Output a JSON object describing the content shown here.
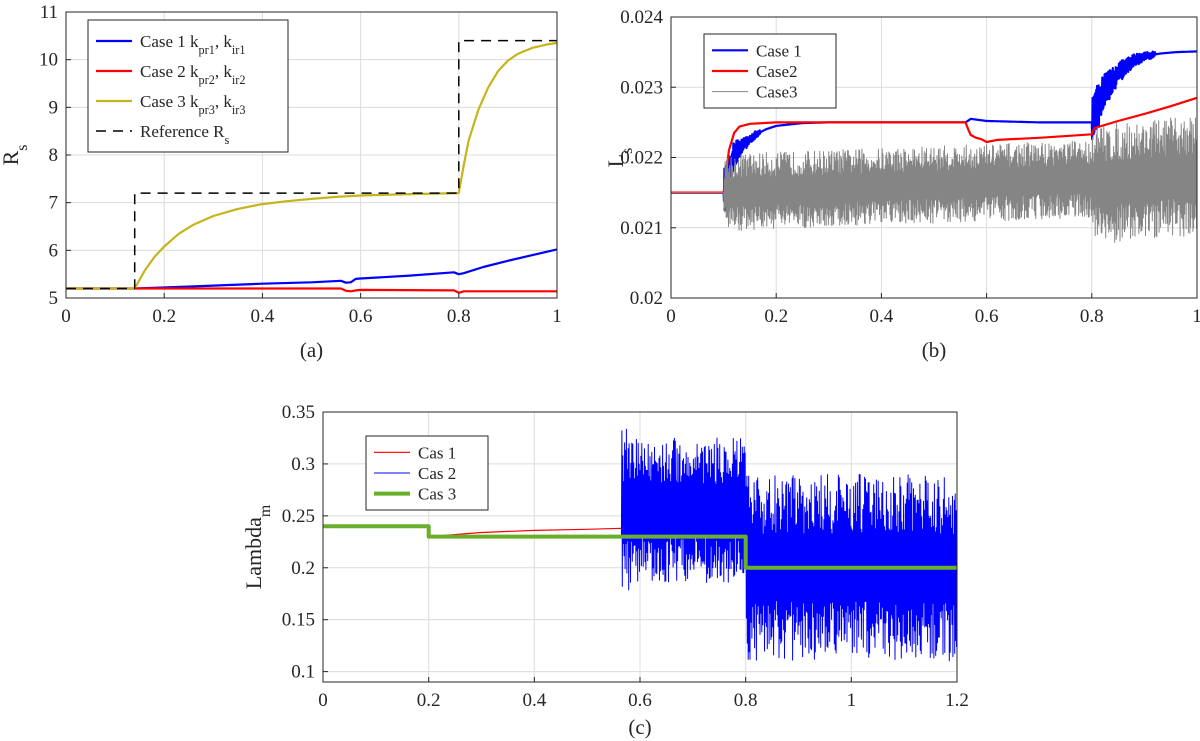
{
  "chart_data": [
    {
      "panel": "(a)",
      "caption": "(a)",
      "type": "line",
      "xlabel": "",
      "ylabel": {
        "main": "R",
        "sub": "s"
      },
      "xlim": [
        0,
        1
      ],
      "ylim": [
        5,
        11
      ],
      "xticks": [
        0,
        0.2,
        0.4,
        0.6,
        0.8,
        1
      ],
      "xtick_labels": [
        "0",
        "0.2",
        "0.4",
        "0.6",
        "0.8",
        "1"
      ],
      "yticks": [
        5,
        6,
        7,
        8,
        9,
        10,
        11
      ],
      "ytick_labels": [
        "5",
        "6",
        "7",
        "8",
        "9",
        "10",
        "11"
      ],
      "grid": true,
      "legend_position": "top-left",
      "series": [
        {
          "legend": {
            "main": "Case 1 k",
            "sub1": "pr1",
            "mid": ", k",
            "sub2": "ir1"
          },
          "color": "#0000ff",
          "width": 2.2,
          "x": [
            0,
            0.14,
            0.2,
            0.3,
            0.4,
            0.5,
            0.56,
            0.57,
            0.58,
            0.59,
            0.6,
            0.7,
            0.79,
            0.8,
            0.81,
            0.85,
            0.9,
            0.95,
            1.0
          ],
          "y": [
            5.2,
            5.2,
            5.22,
            5.26,
            5.3,
            5.33,
            5.36,
            5.32,
            5.33,
            5.4,
            5.41,
            5.47,
            5.54,
            5.5,
            5.52,
            5.65,
            5.78,
            5.9,
            6.02
          ]
        },
        {
          "legend": {
            "main": "Case 2 k",
            "sub1": "pr2",
            "mid": ", k",
            "sub2": "ir2"
          },
          "color": "#ff0000",
          "width": 2.2,
          "x": [
            0,
            0.14,
            0.3,
            0.56,
            0.57,
            0.58,
            0.59,
            0.6,
            0.79,
            0.8,
            0.81,
            1.0
          ],
          "y": [
            5.2,
            5.2,
            5.2,
            5.2,
            5.15,
            5.14,
            5.16,
            5.17,
            5.16,
            5.11,
            5.14,
            5.14
          ]
        },
        {
          "legend": {
            "main": "Case 3 k",
            "sub1": "pr3",
            "mid": ", k",
            "sub2": "ir3"
          },
          "color": "#c6b41c",
          "width": 2.2,
          "x": [
            0,
            0.14,
            0.16,
            0.18,
            0.2,
            0.23,
            0.26,
            0.3,
            0.35,
            0.4,
            0.45,
            0.5,
            0.55,
            0.6,
            0.7,
            0.8,
            0.81,
            0.82,
            0.84,
            0.86,
            0.88,
            0.9,
            0.92,
            0.95,
            0.98,
            1.0
          ],
          "y": [
            5.2,
            5.2,
            5.57,
            5.86,
            6.08,
            6.35,
            6.54,
            6.72,
            6.87,
            6.97,
            7.03,
            7.08,
            7.12,
            7.15,
            7.18,
            7.2,
            7.78,
            8.3,
            8.95,
            9.42,
            9.76,
            9.98,
            10.12,
            10.25,
            10.32,
            10.35
          ]
        },
        {
          "legend": {
            "main": "Reference R",
            "sub1": "s",
            "mid": "",
            "sub2": ""
          },
          "color": "#000000",
          "width": 1.5,
          "dash": "10,7",
          "x": [
            0,
            0.14,
            0.14,
            0.8,
            0.8,
            1.0
          ],
          "y": [
            5.2,
            5.2,
            7.2,
            7.2,
            10.4,
            10.4
          ]
        }
      ]
    },
    {
      "panel": "(b)",
      "caption": "(b)",
      "type": "line",
      "xlabel": "",
      "ylabel": {
        "main": "L",
        "sub": "s"
      },
      "xlim": [
        0,
        1
      ],
      "ylim": [
        0.02,
        0.024
      ],
      "xticks": [
        0,
        0.2,
        0.4,
        0.6,
        0.8,
        1
      ],
      "xtick_labels": [
        "0",
        "0.2",
        "0.4",
        "0.6",
        "0.8",
        "1"
      ],
      "yticks": [
        0.02,
        0.021,
        0.022,
        0.023,
        0.024
      ],
      "ytick_labels": [
        "0.02",
        "0.021",
        "0.022",
        "0.023",
        "0.024"
      ],
      "grid": true,
      "legend_position": "top-left",
      "series": [
        {
          "name": "Case 1",
          "color": "#0000ff",
          "width": 2.2,
          "x": [
            0,
            0.1,
            0.11,
            0.12,
            0.14,
            0.16,
            0.18,
            0.2,
            0.25,
            0.3,
            0.56,
            0.57,
            0.6,
            0.7,
            0.8,
            0.82,
            0.85,
            0.88,
            0.9,
            0.93,
            0.96,
            1.0
          ],
          "y": [
            0.0215,
            0.0215,
            0.0218,
            0.02205,
            0.0222,
            0.02232,
            0.0224,
            0.02245,
            0.02249,
            0.0225,
            0.0225,
            0.02255,
            0.02252,
            0.0225,
            0.0225,
            0.0229,
            0.0232,
            0.02338,
            0.02344,
            0.02348,
            0.0235,
            0.02351
          ],
          "noise": [
            {
              "from": 0.1,
              "to": 0.17,
              "amp": 0.00035,
              "decay": true
            },
            {
              "from": 0.8,
              "to": 0.92,
              "amp": 0.0004,
              "decay": true
            }
          ]
        },
        {
          "name": "Case2",
          "color": "#ff0000",
          "width": 2.2,
          "x": [
            0,
            0.1,
            0.11,
            0.12,
            0.13,
            0.15,
            0.2,
            0.56,
            0.565,
            0.57,
            0.58,
            0.59,
            0.6,
            0.62,
            0.7,
            0.8,
            0.805,
            0.85,
            0.9,
            0.95,
            1.0
          ],
          "y": [
            0.0215,
            0.0215,
            0.0221,
            0.02235,
            0.02244,
            0.02248,
            0.0225,
            0.0225,
            0.0224,
            0.02232,
            0.02228,
            0.02226,
            0.02222,
            0.02225,
            0.02228,
            0.02233,
            0.02242,
            0.02252,
            0.02262,
            0.02273,
            0.02285
          ]
        },
        {
          "name": "Case3",
          "color": "#858585",
          "width": 1,
          "x": [
            0,
            0.1,
            0.8,
            0.8,
            1.0
          ],
          "y": [
            0.0215,
            0.0215,
            0.0217,
            0.0216,
            0.02175
          ],
          "noise": [
            {
              "from": 0.1,
              "to": 0.8,
              "amp": 0.00055,
              "decay": false
            },
            {
              "from": 0.8,
              "to": 1.0,
              "amp": 0.00085,
              "decay": false
            }
          ]
        }
      ]
    },
    {
      "panel": "(c)",
      "caption": "(c)",
      "type": "line",
      "xlabel": "",
      "ylabel": {
        "main": "Lambda",
        "sub": "m"
      },
      "xlim": [
        0,
        1.2
      ],
      "ylim": [
        0.09,
        0.35
      ],
      "xticks": [
        0,
        0.2,
        0.4,
        0.6,
        0.8,
        1,
        1.2
      ],
      "xtick_labels": [
        "0",
        "0.2",
        "0.4",
        "0.6",
        "0.8",
        "1",
        "1.2"
      ],
      "yticks": [
        0.1,
        0.15,
        0.2,
        0.25,
        0.3,
        0.35
      ],
      "ytick_labels": [
        "0.1",
        "0.15",
        "0.2",
        "0.25",
        "0.3",
        "0.35"
      ],
      "grid": true,
      "legend_position": "top-left",
      "series": [
        {
          "name": "Cas 1",
          "color": "#ff0000",
          "width": 1.2,
          "x": [
            0,
            0.2,
            0.2,
            0.3,
            0.4,
            0.5,
            0.565,
            0.57,
            0.8,
            0.8,
            0.85,
            0.88,
            0.9,
            1.2
          ],
          "y": [
            0.24,
            0.24,
            0.23,
            0.234,
            0.236,
            0.237,
            0.238,
            0.23,
            0.23,
            0.2,
            0.196,
            0.195,
            0.2,
            0.2
          ]
        },
        {
          "name": "Cas 2",
          "color": "#0000ff",
          "width": 1,
          "x": [
            0,
            0.2,
            0.2,
            0.565,
            0.565,
            0.8,
            0.8,
            1.2
          ],
          "y": [
            0.24,
            0.24,
            0.23,
            0.23,
            0.255,
            0.255,
            0.2,
            0.2
          ],
          "noise": [
            {
              "from": 0.565,
              "to": 0.58,
              "amp": 0.08,
              "decay": false
            },
            {
              "from": 0.58,
              "to": 0.8,
              "amp": 0.07,
              "decay": false
            },
            {
              "from": 0.8,
              "to": 1.2,
              "amp": 0.09,
              "decay": false
            }
          ]
        },
        {
          "name": "Cas 3",
          "color": "#6aaf2c",
          "width": 4,
          "x": [
            0,
            0.2,
            0.2,
            0.8,
            0.8,
            1.2
          ],
          "y": [
            0.24,
            0.24,
            0.23,
            0.23,
            0.2,
            0.2
          ]
        }
      ]
    }
  ]
}
